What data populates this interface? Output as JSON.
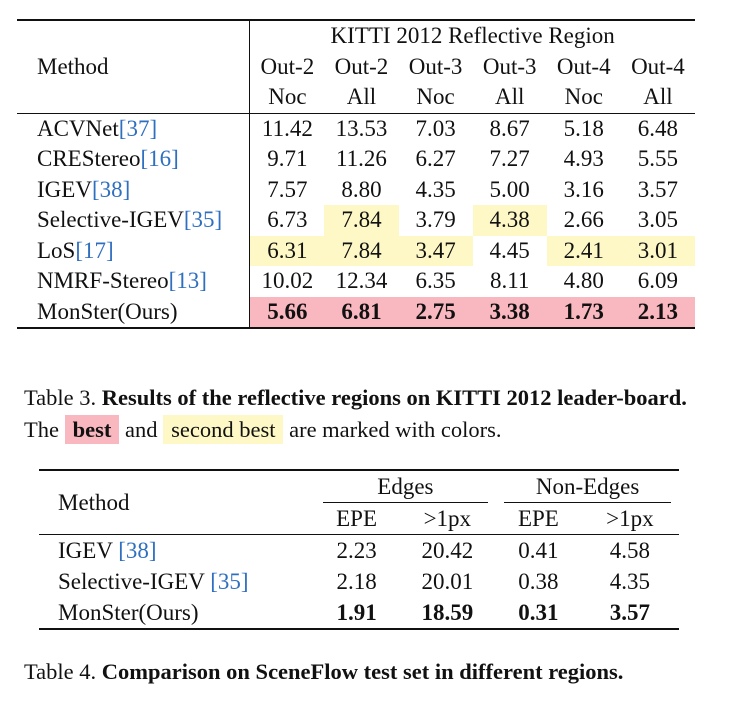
{
  "table3": {
    "method_header": "Method",
    "group_header": "KITTI 2012 Reflective Region",
    "col_top": [
      "Out-2",
      "Out-2",
      "Out-3",
      "Out-3",
      "Out-4",
      "Out-4"
    ],
    "col_bottom": [
      "Noc",
      "All",
      "Noc",
      "All",
      "Noc",
      "All"
    ],
    "rows": [
      {
        "name": "ACVNet",
        "cite": "[37]",
        "values": [
          "11.42",
          "13.53",
          "7.03",
          "8.67",
          "5.18",
          "6.48"
        ],
        "marks": [
          "",
          "",
          "",
          "",
          "",
          ""
        ]
      },
      {
        "name": "CREStereo",
        "cite": "[16]",
        "values": [
          "9.71",
          "11.26",
          "6.27",
          "7.27",
          "4.93",
          "5.55"
        ],
        "marks": [
          "",
          "",
          "",
          "",
          "",
          ""
        ]
      },
      {
        "name": "IGEV",
        "cite": "[38]",
        "values": [
          "7.57",
          "8.80",
          "4.35",
          "5.00",
          "3.16",
          "3.57"
        ],
        "marks": [
          "",
          "",
          "",
          "",
          "",
          ""
        ]
      },
      {
        "name": "Selective-IGEV",
        "cite": "[35]",
        "values": [
          "6.73",
          "7.84",
          "3.79",
          "4.38",
          "2.66",
          "3.05"
        ],
        "marks": [
          "",
          "second",
          "",
          "second",
          "",
          ""
        ]
      },
      {
        "name": "LoS",
        "cite": "[17]",
        "values": [
          "6.31",
          "7.84",
          "3.47",
          "4.45",
          "2.41",
          "3.01"
        ],
        "marks": [
          "second",
          "second",
          "second",
          "",
          "second",
          "second"
        ]
      },
      {
        "name": "NMRF-Stereo",
        "cite": "[13]",
        "values": [
          "10.02",
          "12.34",
          "6.35",
          "8.11",
          "4.80",
          "6.09"
        ],
        "marks": [
          "",
          "",
          "",
          "",
          "",
          ""
        ]
      },
      {
        "name": "MonSter(Ours)",
        "cite": "",
        "values": [
          "5.66",
          "6.81",
          "2.75",
          "3.38",
          "1.73",
          "2.13"
        ],
        "marks": [
          "best",
          "best",
          "best",
          "best",
          "best",
          "best"
        ]
      }
    ],
    "colors": {
      "best": "#f9b8c0",
      "second": "#fdf8c6"
    }
  },
  "caption3": {
    "label": "Table 3.",
    "bold": "Results of the reflective regions on KITTI 2012 leader-board.",
    "pre": "The",
    "best": "best",
    "and": "and",
    "second": "second best",
    "post": "are marked with colors."
  },
  "table4": {
    "method_header": "Method",
    "groups": [
      "Edges",
      "Non-Edges"
    ],
    "subcols": [
      "EPE",
      ">1px",
      "EPE",
      ">1px"
    ],
    "rows": [
      {
        "name": "IGEV",
        "cite": "[38]",
        "values": [
          "2.23",
          "20.42",
          "0.41",
          "4.58"
        ],
        "bold": false
      },
      {
        "name": "Selective-IGEV",
        "cite": "[35]",
        "values": [
          "2.18",
          "20.01",
          "0.38",
          "4.35"
        ],
        "bold": false
      },
      {
        "name": "MonSter(Ours)",
        "cite": "",
        "values": [
          "1.91",
          "18.59",
          "0.31",
          "3.57"
        ],
        "bold": true
      }
    ]
  },
  "caption4": {
    "label": "Table 4.",
    "bold": "Comparison on SceneFlow test set in different regions."
  }
}
